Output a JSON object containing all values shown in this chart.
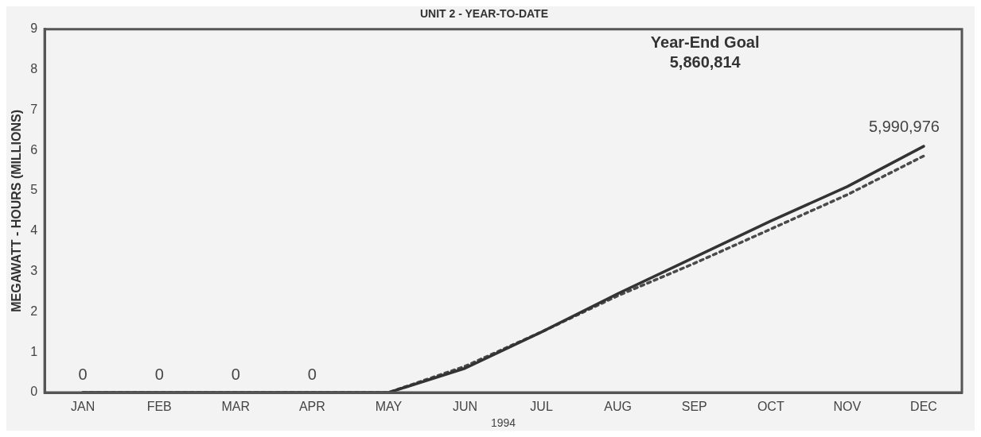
{
  "chart_data": {
    "type": "line",
    "title": "UNIT 2 - YEAR-TO-DATE",
    "xlabel": "1994",
    "ylabel": "MEGAWATT - HOURS (MILLIONS)",
    "categories": [
      "JAN",
      "FEB",
      "MAR",
      "APR",
      "MAY",
      "JUN",
      "JUL",
      "AUG",
      "SEP",
      "OCT",
      "NOV",
      "DEC"
    ],
    "series": [
      {
        "color": "#333333",
        "line_style": "solid",
        "values": [
          0,
          0,
          0,
          0,
          0,
          0.6,
          1.5,
          2.45,
          3.35,
          4.25,
          5.1,
          6.1
        ],
        "value_labels": [
          "0",
          "0",
          "0",
          "0",
          null,
          null,
          null,
          null,
          null,
          null,
          null,
          null
        ]
      },
      {
        "color": "#4a4a4a",
        "line_style": "dotted",
        "values": [
          0,
          0,
          0,
          0,
          0,
          0.65,
          1.5,
          2.4,
          3.2,
          4.05,
          4.9,
          5.86
        ]
      }
    ],
    "annotations": [
      "Year-End Goal",
      "5,860,814",
      {
        "text": "5,990,976",
        "x": "DEC",
        "y": 6.1
      }
    ],
    "ylim": [
      0,
      9
    ],
    "yticks": [
      0,
      1,
      2,
      3,
      4,
      5,
      6,
      7,
      8,
      9
    ],
    "grid": false,
    "legend": false,
    "marker": "none"
  }
}
